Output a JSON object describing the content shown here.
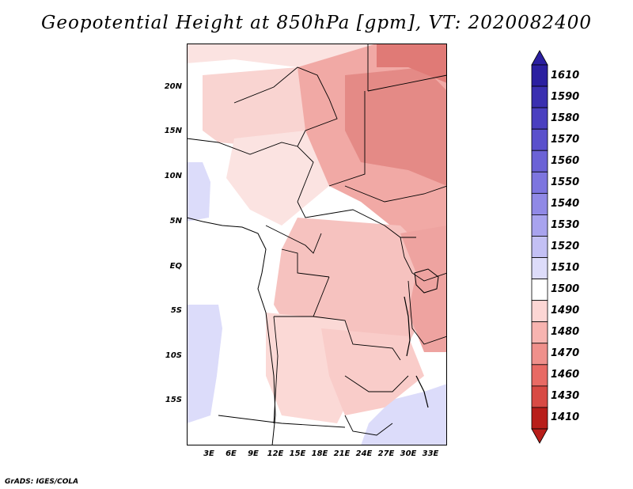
{
  "title": "Geopotential Height at 850hPa [gpm], VT: 2020082400",
  "footer": "GrADS: IGES/COLA",
  "map": {
    "region": "Central Africa",
    "lat_labels": [
      "20N",
      "15N",
      "10N",
      "5N",
      "EQ",
      "5S",
      "10S",
      "15S"
    ],
    "lon_labels": [
      "3E",
      "6E",
      "9E",
      "12E",
      "15E",
      "18E",
      "21E",
      "24E",
      "27E",
      "30E",
      "33E"
    ]
  },
  "colorbar": {
    "levels": [
      "1610",
      "1590",
      "1580",
      "1570",
      "1560",
      "1550",
      "1540",
      "1530",
      "1520",
      "1510",
      "1500",
      "1490",
      "1480",
      "1470",
      "1460",
      "1430",
      "1410"
    ],
    "colors": [
      "#2b1fa0",
      "#3a2fb0",
      "#4a3fc0",
      "#5a50cc",
      "#6b62d6",
      "#7d75df",
      "#9089e6",
      "#a8a3ee",
      "#c3c0f4",
      "#dddcfa",
      "#ffffff",
      "#fcd6d4",
      "#f7b4b0",
      "#ef908b",
      "#e86a64",
      "#d84a44",
      "#b81e1a"
    ],
    "unit": "gpm"
  },
  "legend_colors": {
    "land_low": "#fbe3e1",
    "land_mid": "#f6c2bf",
    "land_high": "#eca19d",
    "land_max": "#e3807c",
    "ocean": "#ffffff",
    "low_blue": "#dcdcfa"
  }
}
